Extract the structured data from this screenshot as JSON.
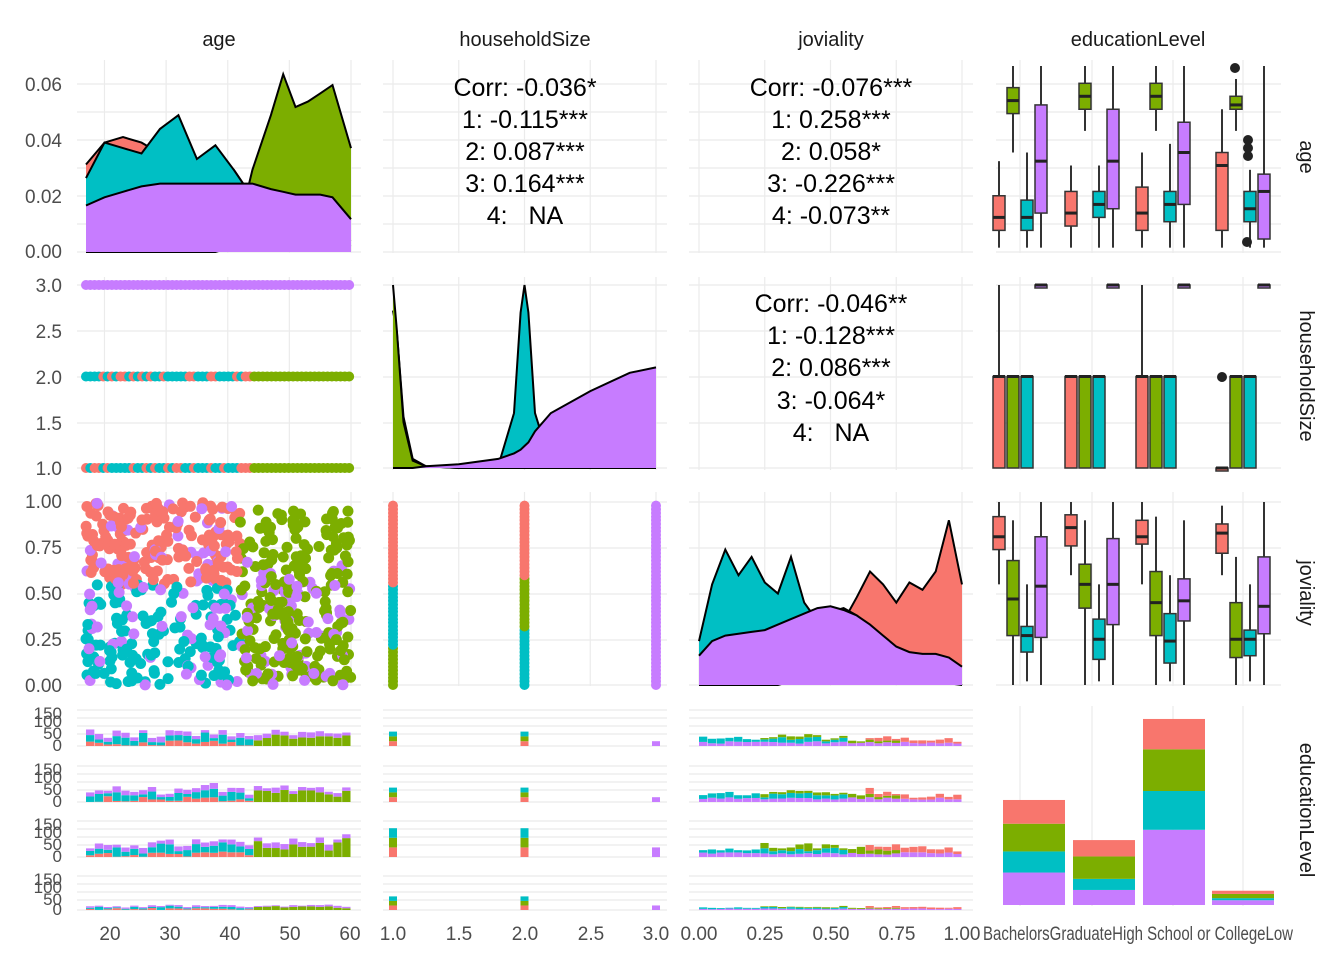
{
  "colors": {
    "1": "#F8766D",
    "2": "#7CAE00",
    "3": "#00BFC4",
    "4": "#C77CFF",
    "overall": "#595959",
    "grid": "#EBEBEB"
  },
  "chart_data": {
    "type": "pairs-matrix",
    "variables": [
      "age",
      "householdSize",
      "joviality",
      "educationLevel"
    ],
    "groups": [
      "1",
      "2",
      "3",
      "4"
    ],
    "categories": [
      "Bachelors",
      "Graduate",
      "HighSchoolOrCollege",
      "Low"
    ],
    "category_labels_rendered": "BachelorsGraduateHigh School or CollegeLow",
    "axes": {
      "age": {
        "ticks": [
          "20",
          "30",
          "40",
          "50",
          "60"
        ],
        "lim": [
          17,
          60
        ]
      },
      "householdSize": {
        "ticks": [
          "1.0",
          "1.5",
          "2.0",
          "2.5",
          "3.0"
        ],
        "lim": [
          1,
          3
        ]
      },
      "joviality": {
        "ticks": [
          "0.00",
          "0.25",
          "0.50",
          "0.75",
          "1.00"
        ],
        "lim": [
          0,
          1
        ]
      },
      "age_density_y": {
        "ticks": [
          "0.00",
          "0.02",
          "0.04",
          "0.06"
        ],
        "lim": [
          0,
          0.068
        ]
      },
      "count_y": {
        "ticks": [
          "0",
          "50",
          "100",
          "150"
        ]
      }
    },
    "correlations": {
      "age_householdSize": {
        "overall": "Corr: -0.036*",
        "groups": [
          "1: -0.115***",
          "2: 0.087***",
          "3: 0.164***",
          "4:   NA"
        ]
      },
      "age_joviality": {
        "overall": "Corr: -0.076***",
        "groups": [
          "1: 0.258***",
          "2: 0.058*",
          "3: -0.226***",
          "4: -0.073**"
        ]
      },
      "householdSize_joviality": {
        "overall": "Corr: -0.046**",
        "groups": [
          "1: -0.128***",
          "2: 0.086***",
          "3: -0.064*",
          "4:   NA"
        ]
      }
    },
    "age_density": {
      "x": [
        17,
        20,
        23,
        26,
        29,
        32,
        35,
        38,
        41,
        44,
        47,
        49,
        51,
        53,
        55,
        57,
        60
      ],
      "series": [
        {
          "name": "1",
          "values": [
            0.032,
            0.04,
            0.042,
            0.04,
            0.036,
            0.033,
            0.034,
            0.036,
            0.03,
            0.02,
            0.012,
            0.008,
            0.006,
            0.005,
            0.005,
            0.005,
            0.004
          ]
        },
        {
          "name": "2",
          "values": [
            0.0,
            0.0,
            0.0,
            0.0,
            0.0,
            0.0,
            0.0,
            0.0,
            0.002,
            0.03,
            0.05,
            0.065,
            0.053,
            0.055,
            0.058,
            0.061,
            0.038
          ]
        },
        {
          "name": "3",
          "values": [
            0.027,
            0.04,
            0.038,
            0.036,
            0.045,
            0.05,
            0.034,
            0.039,
            0.03,
            0.02,
            0.01,
            0.006,
            0.004,
            0.004,
            0.004,
            0.003,
            0.002
          ]
        },
        {
          "name": "4",
          "values": [
            0.017,
            0.02,
            0.022,
            0.024,
            0.025,
            0.025,
            0.025,
            0.025,
            0.025,
            0.025,
            0.023,
            0.022,
            0.021,
            0.021,
            0.021,
            0.02,
            0.012
          ]
        }
      ]
    },
    "householdSize_density": {
      "x": [
        1.0,
        1.03,
        1.08,
        1.15,
        1.25,
        1.5,
        1.8,
        1.92,
        1.97,
        2.0,
        2.03,
        2.08,
        2.2,
        2.5,
        2.8,
        3.0
      ],
      "series": [
        {
          "name": "2",
          "values": [
            1.0,
            0.75,
            0.25,
            0.04,
            0.01,
            0.0,
            0.0,
            0.0,
            0.0,
            0.0,
            0.0,
            0.0,
            0.0,
            0.0,
            0.0,
            0.0
          ]
        },
        {
          "name": "3",
          "values": [
            0.86,
            0.74,
            0.28,
            0.05,
            0.01,
            0.0,
            0.01,
            0.3,
            0.85,
            1.0,
            0.85,
            0.3,
            0.02,
            0.0,
            0.0,
            0.0
          ]
        },
        {
          "name": "4",
          "values": [
            0.0,
            0.0,
            0.0,
            0.0,
            0.01,
            0.02,
            0.05,
            0.08,
            0.1,
            0.12,
            0.14,
            0.2,
            0.3,
            0.42,
            0.52,
            0.55
          ]
        }
      ]
    },
    "joviality_density": {
      "x": [
        0.0,
        0.05,
        0.1,
        0.15,
        0.2,
        0.25,
        0.3,
        0.35,
        0.4,
        0.45,
        0.5,
        0.55,
        0.6,
        0.65,
        0.7,
        0.75,
        0.8,
        0.85,
        0.9,
        0.95,
        1.0
      ],
      "series": [
        {
          "name": "1",
          "values": [
            0.0,
            0.0,
            0.0,
            0.0,
            0.0,
            0.0,
            0.0,
            0.02,
            0.05,
            0.1,
            0.2,
            0.35,
            0.48,
            0.62,
            0.55,
            0.45,
            0.56,
            0.52,
            0.62,
            0.9,
            0.55
          ]
        },
        {
          "name": "2",
          "values": [
            0.0,
            0.0,
            0.02,
            0.03,
            0.05,
            0.08,
            0.12,
            0.2,
            0.26,
            0.34,
            0.4,
            0.42,
            0.38,
            0.32,
            0.22,
            0.14,
            0.1,
            0.08,
            0.06,
            0.03,
            0.0
          ]
        },
        {
          "name": "3",
          "values": [
            0.24,
            0.55,
            0.74,
            0.6,
            0.7,
            0.56,
            0.5,
            0.7,
            0.45,
            0.35,
            0.25,
            0.16,
            0.1,
            0.06,
            0.04,
            0.03,
            0.02,
            0.02,
            0.02,
            0.01,
            0.0
          ]
        },
        {
          "name": "4",
          "values": [
            0.16,
            0.24,
            0.27,
            0.28,
            0.29,
            0.3,
            0.33,
            0.36,
            0.39,
            0.42,
            0.43,
            0.41,
            0.38,
            0.33,
            0.27,
            0.21,
            0.18,
            0.17,
            0.17,
            0.15,
            0.1
          ]
        }
      ]
    },
    "education_counts": {
      "categories": [
        "Bachelors",
        "Graduate",
        "HighSchoolOrCollege",
        "Low"
      ],
      "series": [
        {
          "name": "1",
          "values": [
            90,
            62,
            115,
            12
          ]
        },
        {
          "name": "2",
          "values": [
            105,
            85,
            158,
            16
          ]
        },
        {
          "name": "3",
          "values": [
            80,
            42,
            147,
            8
          ]
        },
        {
          "name": "4",
          "values": [
            123,
            57,
            285,
            18
          ]
        }
      ]
    },
    "age_by_education_box": {
      "categories": [
        "Bachelors",
        "Graduate",
        "HighSchoolOrCollege",
        "Low"
      ],
      "series": [
        {
          "name": "1",
          "stats": [
            [
              18,
              22,
              25,
              30,
              38
            ],
            [
              18,
              23,
              26,
              31,
              37
            ],
            [
              18,
              22,
              26,
              32,
              40
            ],
            [
              18,
              22,
              37,
              40,
              50
            ]
          ]
        },
        {
          "name": "2",
          "stats": [
            [
              40,
              49,
              52,
              55,
              60
            ],
            [
              45,
              50,
              53,
              56,
              60
            ],
            [
              45,
              50,
              53,
              56,
              60
            ],
            [
              45,
              50,
              51,
              53,
              57
            ]
          ]
        },
        {
          "name": "3",
          "stats": [
            [
              18,
              22,
              25,
              29,
              40
            ],
            [
              18,
              25,
              28,
              31,
              37
            ],
            [
              18,
              24,
              28,
              31,
              42
            ],
            [
              18,
              24,
              27,
              31,
              36
            ]
          ]
        },
        {
          "name": "4",
          "stats": [
            [
              18,
              26,
              38,
              51,
              60
            ],
            [
              18,
              27,
              38,
              50,
              60
            ],
            [
              18,
              28,
              40,
              47,
              60
            ],
            [
              18,
              20,
              31,
              35,
              60
            ]
          ]
        }
      ]
    },
    "householdSize_by_education_box": {
      "categories": [
        "Bachelors",
        "Graduate",
        "HighSchoolOrCollege",
        "Low"
      ],
      "series": [
        {
          "name": "1",
          "stats": [
            [
              1,
              1,
              2,
              2,
              3
            ],
            [
              1,
              1,
              2,
              2,
              2
            ],
            [
              1,
              1,
              2,
              2,
              3
            ],
            [
              1,
              1,
              1,
              1,
              1
            ]
          ]
        },
        {
          "name": "2",
          "stats": [
            [
              1,
              1,
              2,
              2,
              2
            ],
            [
              1,
              1,
              2,
              2,
              2
            ],
            [
              1,
              1,
              2,
              2,
              2
            ],
            [
              1,
              1,
              2,
              2,
              2
            ]
          ]
        },
        {
          "name": "3",
          "stats": [
            [
              1,
              1,
              2,
              2,
              2
            ],
            [
              1,
              1,
              2,
              2,
              2
            ],
            [
              1,
              1,
              2,
              2,
              2
            ],
            [
              1,
              1,
              2,
              2,
              2
            ]
          ]
        },
        {
          "name": "4",
          "stats": [
            [
              3,
              3,
              3,
              3,
              3
            ],
            [
              3,
              3,
              3,
              3,
              3
            ],
            [
              3,
              3,
              3,
              3,
              3
            ],
            [
              3,
              3,
              3,
              3,
              3
            ]
          ]
        }
      ]
    },
    "joviality_by_education_box": {
      "categories": [
        "Bachelors",
        "Graduate",
        "HighSchoolOrCollege",
        "Low"
      ],
      "series": [
        {
          "name": "1",
          "stats": [
            [
              0.55,
              0.74,
              0.81,
              0.92,
              1.0
            ],
            [
              0.6,
              0.76,
              0.86,
              0.93,
              1.0
            ],
            [
              0.55,
              0.77,
              0.81,
              0.9,
              1.0
            ],
            [
              0.6,
              0.72,
              0.83,
              0.88,
              0.98
            ]
          ]
        },
        {
          "name": "2",
          "stats": [
            [
              0.0,
              0.27,
              0.47,
              0.68,
              0.9
            ],
            [
              0.0,
              0.42,
              0.55,
              0.66,
              0.9
            ],
            [
              0.0,
              0.27,
              0.45,
              0.62,
              0.92
            ],
            [
              0.0,
              0.15,
              0.25,
              0.45,
              0.7
            ]
          ]
        },
        {
          "name": "3",
          "stats": [
            [
              0.02,
              0.18,
              0.27,
              0.32,
              0.55
            ],
            [
              0.02,
              0.14,
              0.25,
              0.36,
              0.55
            ],
            [
              0.02,
              0.12,
              0.24,
              0.39,
              0.6
            ],
            [
              0.02,
              0.16,
              0.25,
              0.3,
              0.55
            ]
          ]
        },
        {
          "name": "4",
          "stats": [
            [
              0.0,
              0.26,
              0.54,
              0.81,
              1.0
            ],
            [
              0.0,
              0.33,
              0.55,
              0.8,
              1.0
            ],
            [
              0.0,
              0.35,
              0.46,
              0.58,
              0.9
            ],
            [
              0.0,
              0.28,
              0.43,
              0.7,
              1.0
            ]
          ]
        }
      ]
    }
  }
}
